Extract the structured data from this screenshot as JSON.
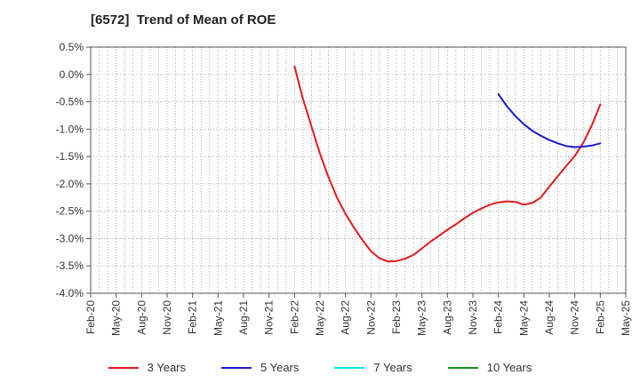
{
  "chart_data": {
    "type": "line",
    "title": "[6572]  Trend of Mean of ROE",
    "xlabel": "",
    "ylabel": "",
    "y_tick_labels": [
      "0.5%",
      "0.0%",
      "-0.5%",
      "-1.0%",
      "-1.5%",
      "-2.0%",
      "-2.5%",
      "-3.0%",
      "-3.5%",
      "-4.0%"
    ],
    "ylim": [
      -4.0,
      0.5
    ],
    "x_tick_labels": [
      "Feb-20",
      "May-20",
      "Aug-20",
      "Nov-20",
      "Feb-21",
      "May-21",
      "Aug-21",
      "Nov-21",
      "Feb-22",
      "May-22",
      "Aug-22",
      "Nov-22",
      "Feb-23",
      "May-23",
      "Aug-23",
      "Nov-23",
      "Feb-24",
      "May-24",
      "Aug-24",
      "Nov-24",
      "Feb-25",
      "May-25"
    ],
    "grid": true,
    "legend_position": "bottom",
    "series": [
      {
        "name": "3 Years",
        "color": "#e31a1c",
        "points": [
          [
            "Feb-22",
            0.15
          ],
          [
            "Mar-22",
            -0.45
          ],
          [
            "Apr-22",
            -0.95
          ],
          [
            "May-22",
            -1.45
          ],
          [
            "Jun-22",
            -1.88
          ],
          [
            "Jul-22",
            -2.25
          ],
          [
            "Aug-22",
            -2.55
          ],
          [
            "Sep-22",
            -2.8
          ],
          [
            "Oct-22",
            -3.03
          ],
          [
            "Nov-22",
            -3.23
          ],
          [
            "Dec-22",
            -3.36
          ],
          [
            "Jan-23",
            -3.42
          ],
          [
            "Feb-23",
            -3.41
          ],
          [
            "Mar-23",
            -3.37
          ],
          [
            "Apr-23",
            -3.3
          ],
          [
            "May-23",
            -3.18
          ],
          [
            "Jun-23",
            -3.06
          ],
          [
            "Jul-23",
            -2.95
          ],
          [
            "Aug-23",
            -2.84
          ],
          [
            "Sep-23",
            -2.74
          ],
          [
            "Oct-23",
            -2.63
          ],
          [
            "Nov-23",
            -2.53
          ],
          [
            "Dec-23",
            -2.45
          ],
          [
            "Jan-24",
            -2.38
          ],
          [
            "Feb-24",
            -2.34
          ],
          [
            "Mar-24",
            -2.32
          ],
          [
            "Apr-24",
            -2.33
          ],
          [
            "May-24",
            -2.38
          ],
          [
            "Jun-24",
            -2.35
          ],
          [
            "Jul-24",
            -2.25
          ],
          [
            "Aug-24",
            -2.05
          ],
          [
            "Sep-24",
            -1.86
          ],
          [
            "Oct-24",
            -1.67
          ],
          [
            "Nov-24",
            -1.49
          ],
          [
            "Dec-24",
            -1.25
          ],
          [
            "Jan-25",
            -0.93
          ],
          [
            "Feb-25",
            -0.55
          ]
        ]
      },
      {
        "name": "5 Years",
        "color": "#1a1acd",
        "points": [
          [
            "Feb-24",
            -0.36
          ],
          [
            "Mar-24",
            -0.58
          ],
          [
            "Apr-24",
            -0.76
          ],
          [
            "May-24",
            -0.91
          ],
          [
            "Jun-24",
            -1.03
          ],
          [
            "Jul-24",
            -1.12
          ],
          [
            "Aug-24",
            -1.2
          ],
          [
            "Sep-24",
            -1.26
          ],
          [
            "Oct-24",
            -1.31
          ],
          [
            "Nov-24",
            -1.33
          ],
          [
            "Dec-24",
            -1.32
          ],
          [
            "Jan-25",
            -1.3
          ],
          [
            "Feb-25",
            -1.26
          ]
        ]
      },
      {
        "name": "7 Years",
        "color": "#00e5ee",
        "points": []
      },
      {
        "name": "10 Years",
        "color": "#1a8c1a",
        "points": []
      }
    ]
  }
}
